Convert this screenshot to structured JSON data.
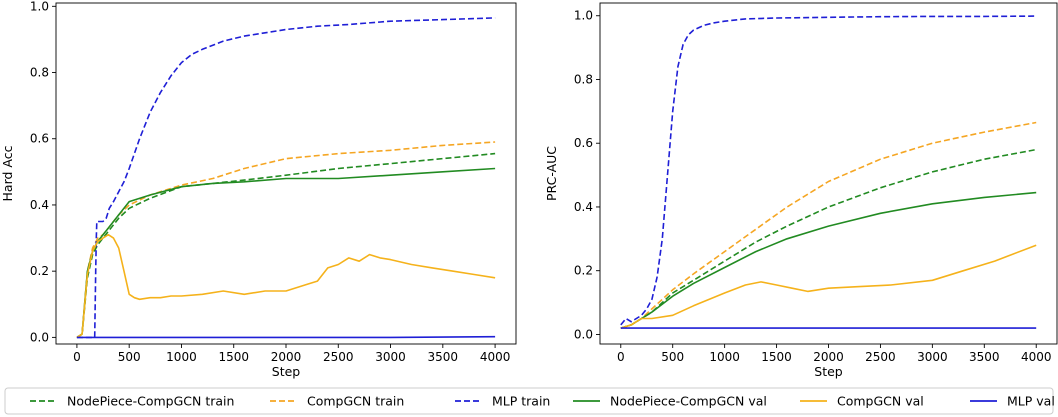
{
  "chart_data": [
    {
      "type": "line",
      "xlabel": "Step",
      "ylabel": "Hard Acc",
      "xlim": [
        -200,
        4200
      ],
      "ylim": [
        -0.02,
        1.01
      ],
      "xticks": [
        0,
        500,
        1000,
        1500,
        2000,
        2500,
        3000,
        3500,
        4000
      ],
      "yticks": [
        0.0,
        0.2,
        0.4,
        0.6,
        0.8,
        1.0
      ],
      "ytick_labels": [
        "0.0",
        "0.2",
        "0.4",
        "0.6",
        "0.8",
        "1.0"
      ],
      "grid": false,
      "series": [
        {
          "name": "NodePiece-CompGCN train",
          "color": "#228b22",
          "style": "dashed",
          "x": [
            0,
            50,
            100,
            150,
            200,
            250,
            300,
            400,
            500,
            700,
            1000,
            1300,
            1600,
            2000,
            2500,
            3000,
            3500,
            4000
          ],
          "y": [
            0,
            0.01,
            0.18,
            0.25,
            0.28,
            0.3,
            0.32,
            0.36,
            0.39,
            0.42,
            0.455,
            0.465,
            0.475,
            0.49,
            0.51,
            0.525,
            0.54,
            0.555
          ]
        },
        {
          "name": "CompGCN train",
          "color": "#f5a623",
          "style": "dashed",
          "x": [
            0,
            50,
            100,
            150,
            200,
            250,
            300,
            400,
            500,
            700,
            1000,
            1300,
            1600,
            2000,
            2500,
            3000,
            3500,
            4000
          ],
          "y": [
            0,
            0.01,
            0.2,
            0.27,
            0.3,
            0.31,
            0.33,
            0.37,
            0.4,
            0.43,
            0.46,
            0.48,
            0.51,
            0.54,
            0.555,
            0.565,
            0.58,
            0.59
          ]
        },
        {
          "name": "MLP train",
          "color": "#1f1fd6",
          "style": "dashed",
          "x": [
            0,
            170,
            175,
            180,
            185,
            190,
            195,
            200,
            250,
            280,
            300,
            310,
            350,
            400,
            450,
            500,
            600,
            700,
            800,
            900,
            1000,
            1100,
            1200,
            1400,
            1600,
            1800,
            2000,
            2300,
            2600,
            3000,
            3500,
            4000
          ],
          "y": [
            0,
            0,
            0.1,
            0.2,
            0.3,
            0.35,
            0.35,
            0.35,
            0.35,
            0.36,
            0.38,
            0.39,
            0.41,
            0.44,
            0.47,
            0.51,
            0.6,
            0.68,
            0.74,
            0.79,
            0.83,
            0.855,
            0.87,
            0.895,
            0.91,
            0.92,
            0.93,
            0.94,
            0.945,
            0.955,
            0.96,
            0.965
          ]
        },
        {
          "name": "NodePiece-CompGCN val",
          "color": "#228b22",
          "style": "solid",
          "x": [
            0,
            50,
            100,
            150,
            200,
            250,
            300,
            400,
            500,
            700,
            1000,
            1300,
            1600,
            2000,
            2500,
            3000,
            3500,
            4000
          ],
          "y": [
            0,
            0.01,
            0.2,
            0.26,
            0.29,
            0.31,
            0.33,
            0.37,
            0.41,
            0.43,
            0.455,
            0.465,
            0.47,
            0.48,
            0.48,
            0.49,
            0.5,
            0.51
          ]
        },
        {
          "name": "CompGCN val",
          "color": "#f5b21b",
          "style": "solid",
          "x": [
            0,
            50,
            100,
            150,
            200,
            250,
            300,
            350,
            400,
            450,
            500,
            550,
            600,
            700,
            800,
            900,
            1000,
            1200,
            1400,
            1600,
            1800,
            2000,
            2200,
            2300,
            2350,
            2400,
            2500,
            2600,
            2700,
            2800,
            2900,
            3000,
            3200,
            3400,
            3600,
            3800,
            4000
          ],
          "y": [
            0,
            0.01,
            0.19,
            0.26,
            0.29,
            0.3,
            0.31,
            0.3,
            0.27,
            0.2,
            0.13,
            0.12,
            0.115,
            0.12,
            0.12,
            0.125,
            0.125,
            0.13,
            0.14,
            0.13,
            0.14,
            0.14,
            0.16,
            0.17,
            0.19,
            0.21,
            0.22,
            0.24,
            0.23,
            0.25,
            0.24,
            0.235,
            0.22,
            0.21,
            0.2,
            0.19,
            0.18
          ]
        },
        {
          "name": "MLP val",
          "color": "#1f1fd6",
          "style": "solid",
          "x": [
            0,
            1000,
            2000,
            3000,
            4000
          ],
          "y": [
            0,
            0,
            0,
            0,
            0.002
          ]
        }
      ]
    },
    {
      "type": "line",
      "xlabel": "Step",
      "ylabel": "PRC-AUC",
      "xlim": [
        -200,
        4200
      ],
      "ylim": [
        -0.03,
        1.04
      ],
      "xticks": [
        0,
        500,
        1000,
        1500,
        2000,
        2500,
        3000,
        3500,
        4000
      ],
      "yticks": [
        0.0,
        0.2,
        0.4,
        0.6,
        0.8,
        1.0
      ],
      "ytick_labels": [
        "0.0",
        "0.2",
        "0.4",
        "0.6",
        "0.8",
        "1.0"
      ],
      "grid": false,
      "series": [
        {
          "name": "NodePiece-CompGCN train",
          "color": "#228b22",
          "style": "dashed",
          "x": [
            0,
            100,
            200,
            300,
            500,
            700,
            1000,
            1300,
            1600,
            2000,
            2500,
            3000,
            3500,
            4000
          ],
          "y": [
            0.02,
            0.03,
            0.05,
            0.07,
            0.13,
            0.17,
            0.23,
            0.29,
            0.34,
            0.4,
            0.46,
            0.51,
            0.55,
            0.58
          ]
        },
        {
          "name": "CompGCN train",
          "color": "#f5a623",
          "style": "dashed",
          "x": [
            0,
            100,
            200,
            300,
            500,
            700,
            1000,
            1300,
            1600,
            2000,
            2500,
            3000,
            3500,
            4000
          ],
          "y": [
            0.02,
            0.03,
            0.05,
            0.08,
            0.14,
            0.19,
            0.26,
            0.33,
            0.4,
            0.48,
            0.55,
            0.6,
            0.635,
            0.665
          ]
        },
        {
          "name": "MLP train",
          "color": "#1f1fd6",
          "style": "dashed",
          "x": [
            0,
            50,
            100,
            150,
            200,
            250,
            300,
            350,
            400,
            450,
            500,
            550,
            600,
            650,
            700,
            800,
            900,
            1000,
            1200,
            1500,
            2000,
            2500,
            3000,
            3500,
            4000
          ],
          "y": [
            0.03,
            0.05,
            0.04,
            0.05,
            0.06,
            0.08,
            0.11,
            0.18,
            0.3,
            0.5,
            0.7,
            0.84,
            0.91,
            0.94,
            0.955,
            0.97,
            0.978,
            0.983,
            0.99,
            0.993,
            0.995,
            0.997,
            0.998,
            0.998,
            0.999
          ]
        },
        {
          "name": "NodePiece-CompGCN val",
          "color": "#228b22",
          "style": "solid",
          "x": [
            0,
            100,
            200,
            300,
            500,
            700,
            1000,
            1300,
            1600,
            2000,
            2500,
            3000,
            3500,
            4000
          ],
          "y": [
            0.02,
            0.03,
            0.05,
            0.07,
            0.12,
            0.16,
            0.21,
            0.26,
            0.3,
            0.34,
            0.38,
            0.41,
            0.43,
            0.445
          ]
        },
        {
          "name": "CompGCN val",
          "color": "#f5b21b",
          "style": "solid",
          "x": [
            0,
            100,
            200,
            300,
            500,
            700,
            1000,
            1200,
            1350,
            1500,
            1650,
            1800,
            2000,
            2300,
            2600,
            3000,
            3300,
            3600,
            4000
          ],
          "y": [
            0.02,
            0.03,
            0.05,
            0.05,
            0.06,
            0.09,
            0.13,
            0.155,
            0.165,
            0.155,
            0.145,
            0.135,
            0.145,
            0.15,
            0.155,
            0.17,
            0.2,
            0.23,
            0.28
          ]
        },
        {
          "name": "MLP val",
          "color": "#1f1fd6",
          "style": "solid",
          "x": [
            0,
            1000,
            2000,
            3000,
            4000
          ],
          "y": [
            0.02,
            0.02,
            0.02,
            0.02,
            0.02
          ]
        }
      ]
    }
  ],
  "legend": {
    "placement": "bottom",
    "entries": [
      {
        "label": "NodePiece-CompGCN train",
        "color": "#228b22",
        "style": "dashed"
      },
      {
        "label": "CompGCN train",
        "color": "#f5a623",
        "style": "dashed"
      },
      {
        "label": "MLP train",
        "color": "#1f1fd6",
        "style": "dashed"
      },
      {
        "label": "NodePiece-CompGCN val",
        "color": "#228b22",
        "style": "solid"
      },
      {
        "label": "CompGCN val",
        "color": "#f5b21b",
        "style": "solid"
      },
      {
        "label": "MLP val",
        "color": "#1f1fd6",
        "style": "solid"
      }
    ]
  }
}
